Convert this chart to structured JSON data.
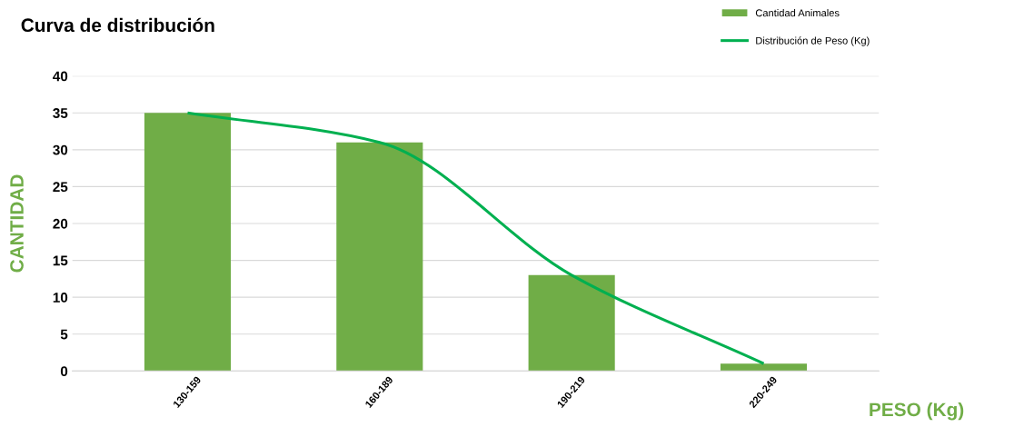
{
  "chart_data": {
    "type": "bar",
    "title": "Curva de distribución",
    "xlabel": "PESO (Kg)",
    "ylabel": "CANTIDAD",
    "categories": [
      "130-159",
      "160-189",
      "190-219",
      "220-249"
    ],
    "series": [
      {
        "name": "Cantidad Animales",
        "color": "#70ad47",
        "values": [
          35,
          31,
          13,
          1
        ]
      },
      {
        "name": "Distribución de Peso (Kg)",
        "type": "line",
        "color": "#00b050",
        "values": [
          35,
          31,
          13,
          1
        ]
      }
    ],
    "ylim": [
      0,
      40
    ],
    "yticks": [
      0,
      5,
      10,
      15,
      20,
      25,
      30,
      35,
      40
    ],
    "grid": "y",
    "legend": "top right",
    "marker": "none",
    "line_style": "solid"
  }
}
